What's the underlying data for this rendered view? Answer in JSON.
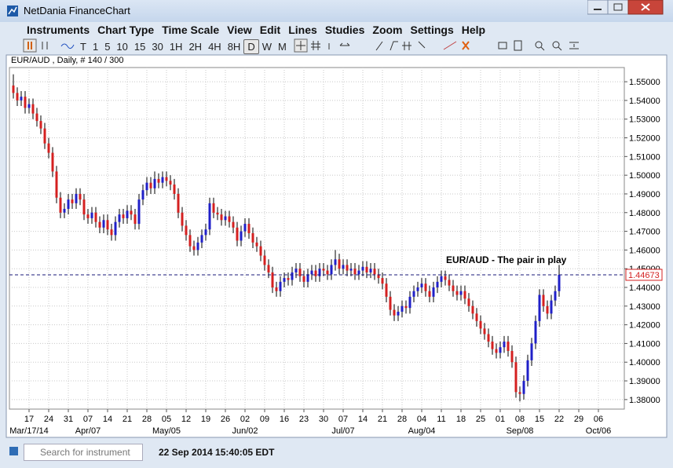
{
  "window": {
    "title": "NetDania FinanceChart"
  },
  "menu": [
    "Instruments",
    "Chart Type",
    "Time Scale",
    "View",
    "Edit",
    "Lines",
    "Studies",
    "Zoom",
    "Settings",
    "Help"
  ],
  "toolbar": {
    "periods": [
      "T",
      "1",
      "5",
      "10",
      "15",
      "30",
      "1H",
      "2H",
      "4H",
      "8H",
      "D",
      "W",
      "M"
    ],
    "selected_period": "D"
  },
  "chart_data": {
    "type": "candlestick",
    "header": "EUR/AUD , Daily, # 140 / 300",
    "annotation": "EUR/AUD - The pair in play",
    "up_color": "#2020c8",
    "down_color": "#d42020",
    "grid": true,
    "x": [
      "2014-03-11",
      "2014-03-12",
      "2014-03-13",
      "2014-03-14",
      "2014-03-17",
      "2014-03-18",
      "2014-03-19",
      "2014-03-20",
      "2014-03-21",
      "2014-03-24",
      "2014-03-25",
      "2014-03-26",
      "2014-03-27",
      "2014-03-28",
      "2014-03-31",
      "2014-04-01",
      "2014-04-02",
      "2014-04-03",
      "2014-04-04",
      "2014-04-07",
      "2014-04-08",
      "2014-04-09",
      "2014-04-10",
      "2014-04-11",
      "2014-04-14",
      "2014-04-15",
      "2014-04-16",
      "2014-04-17",
      "2014-04-18",
      "2014-04-21",
      "2014-04-22",
      "2014-04-23",
      "2014-04-24",
      "2014-04-25",
      "2014-04-28",
      "2014-04-29",
      "2014-04-30",
      "2014-05-01",
      "2014-05-02",
      "2014-05-05",
      "2014-05-06",
      "2014-05-07",
      "2014-05-08",
      "2014-05-09",
      "2014-05-12",
      "2014-05-13",
      "2014-05-14",
      "2014-05-15",
      "2014-05-16",
      "2014-05-19",
      "2014-05-20",
      "2014-05-21",
      "2014-05-22",
      "2014-05-23",
      "2014-05-26",
      "2014-05-27",
      "2014-05-28",
      "2014-05-29",
      "2014-05-30",
      "2014-06-02",
      "2014-06-03",
      "2014-06-04",
      "2014-06-05",
      "2014-06-06",
      "2014-06-09",
      "2014-06-10",
      "2014-06-11",
      "2014-06-12",
      "2014-06-13",
      "2014-06-16",
      "2014-06-17",
      "2014-06-18",
      "2014-06-19",
      "2014-06-20",
      "2014-06-23",
      "2014-06-24",
      "2014-06-25",
      "2014-06-26",
      "2014-06-27",
      "2014-06-30",
      "2014-07-01",
      "2014-07-02",
      "2014-07-03",
      "2014-07-04",
      "2014-07-07",
      "2014-07-08",
      "2014-07-09",
      "2014-07-10",
      "2014-07-11",
      "2014-07-14",
      "2014-07-15",
      "2014-07-16",
      "2014-07-17",
      "2014-07-18",
      "2014-07-21",
      "2014-07-22",
      "2014-07-23",
      "2014-07-24",
      "2014-07-25",
      "2014-07-28",
      "2014-07-29",
      "2014-07-30",
      "2014-07-31",
      "2014-08-01",
      "2014-08-04",
      "2014-08-05",
      "2014-08-06",
      "2014-08-07",
      "2014-08-08",
      "2014-08-11",
      "2014-08-12",
      "2014-08-13",
      "2014-08-14",
      "2014-08-15",
      "2014-08-18",
      "2014-08-19",
      "2014-08-20",
      "2014-08-21",
      "2014-08-22",
      "2014-08-25",
      "2014-08-26",
      "2014-08-27",
      "2014-08-28",
      "2014-08-29",
      "2014-09-01",
      "2014-09-02",
      "2014-09-03",
      "2014-09-04",
      "2014-09-05",
      "2014-09-08",
      "2014-09-09",
      "2014-09-10",
      "2014-09-11",
      "2014-09-12",
      "2014-09-15",
      "2014-09-16",
      "2014-09-17",
      "2014-09-18",
      "2014-09-19",
      "2014-09-22"
    ],
    "open": [
      1.548,
      1.544,
      1.54,
      1.542,
      1.536,
      1.538,
      1.533,
      1.529,
      1.525,
      1.517,
      1.512,
      1.502,
      1.488,
      1.48,
      1.482,
      1.487,
      1.485,
      1.49,
      1.487,
      1.479,
      1.477,
      1.48,
      1.475,
      1.472,
      1.476,
      1.471,
      1.468,
      1.475,
      1.479,
      1.477,
      1.481,
      1.479,
      1.474,
      1.487,
      1.492,
      1.496,
      1.493,
      1.498,
      1.496,
      1.499,
      1.497,
      1.495,
      1.49,
      1.48,
      1.473,
      1.468,
      1.462,
      1.46,
      1.464,
      1.468,
      1.471,
      1.485,
      1.48,
      1.479,
      1.476,
      1.478,
      1.475,
      1.472,
      1.465,
      1.47,
      1.474,
      1.469,
      1.464,
      1.462,
      1.457,
      1.452,
      1.448,
      1.44,
      1.438,
      1.443,
      1.445,
      1.444,
      1.448,
      1.45,
      1.446,
      1.443,
      1.447,
      1.449,
      1.446,
      1.45,
      1.449,
      1.447,
      1.452,
      1.455,
      1.45,
      1.452,
      1.449,
      1.45,
      1.447,
      1.449,
      1.451,
      1.448,
      1.45,
      1.447,
      1.445,
      1.442,
      1.435,
      1.428,
      1.425,
      1.427,
      1.43,
      1.429,
      1.435,
      1.438,
      1.44,
      1.442,
      1.438,
      1.435,
      1.44,
      1.443,
      1.446,
      1.444,
      1.441,
      1.438,
      1.436,
      1.438,
      1.434,
      1.43,
      1.426,
      1.422,
      1.418,
      1.415,
      1.411,
      1.407,
      1.405,
      1.408,
      1.411,
      1.406,
      1.4,
      1.384,
      1.383,
      1.39,
      1.401,
      1.41,
      1.422,
      1.436,
      1.43,
      1.426,
      1.433,
      1.438
    ],
    "high": [
      1.554,
      1.547,
      1.545,
      1.545,
      1.541,
      1.541,
      1.536,
      1.532,
      1.528,
      1.52,
      1.515,
      1.505,
      1.491,
      1.485,
      1.49,
      1.49,
      1.493,
      1.493,
      1.49,
      1.482,
      1.483,
      1.483,
      1.478,
      1.479,
      1.479,
      1.474,
      1.478,
      1.482,
      1.482,
      1.484,
      1.484,
      1.482,
      1.49,
      1.495,
      1.499,
      1.499,
      1.502,
      1.501,
      1.502,
      1.502,
      1.5,
      1.498,
      1.493,
      1.483,
      1.476,
      1.471,
      1.465,
      1.467,
      1.471,
      1.474,
      1.488,
      1.488,
      1.483,
      1.482,
      1.481,
      1.481,
      1.478,
      1.475,
      1.473,
      1.477,
      1.477,
      1.472,
      1.467,
      1.465,
      1.46,
      1.455,
      1.451,
      1.443,
      1.446,
      1.448,
      1.448,
      1.451,
      1.453,
      1.453,
      1.449,
      1.45,
      1.452,
      1.452,
      1.453,
      1.453,
      1.452,
      1.455,
      1.46,
      1.458,
      1.455,
      1.455,
      1.453,
      1.453,
      1.452,
      1.454,
      1.454,
      1.453,
      1.453,
      1.45,
      1.448,
      1.445,
      1.438,
      1.431,
      1.43,
      1.433,
      1.433,
      1.438,
      1.441,
      1.443,
      1.445,
      1.445,
      1.441,
      1.443,
      1.446,
      1.449,
      1.449,
      1.447,
      1.444,
      1.441,
      1.441,
      1.441,
      1.437,
      1.433,
      1.429,
      1.425,
      1.421,
      1.418,
      1.414,
      1.41,
      1.411,
      1.414,
      1.414,
      1.409,
      1.403,
      1.387,
      1.393,
      1.404,
      1.413,
      1.425,
      1.439,
      1.439,
      1.433,
      1.436,
      1.441,
      1.452
    ],
    "low": [
      1.541,
      1.537,
      1.537,
      1.533,
      1.533,
      1.53,
      1.526,
      1.522,
      1.514,
      1.509,
      1.499,
      1.485,
      1.477,
      1.477,
      1.479,
      1.482,
      1.482,
      1.484,
      1.476,
      1.474,
      1.474,
      1.472,
      1.469,
      1.469,
      1.468,
      1.465,
      1.465,
      1.472,
      1.474,
      1.474,
      1.476,
      1.471,
      1.471,
      1.484,
      1.489,
      1.49,
      1.49,
      1.493,
      1.493,
      1.494,
      1.492,
      1.487,
      1.477,
      1.47,
      1.465,
      1.459,
      1.457,
      1.457,
      1.461,
      1.465,
      1.468,
      1.477,
      1.476,
      1.473,
      1.473,
      1.472,
      1.469,
      1.462,
      1.462,
      1.467,
      1.466,
      1.461,
      1.459,
      1.454,
      1.449,
      1.445,
      1.437,
      1.435,
      1.435,
      1.44,
      1.441,
      1.441,
      1.445,
      1.443,
      1.44,
      1.44,
      1.444,
      1.443,
      1.443,
      1.446,
      1.444,
      1.444,
      1.449,
      1.447,
      1.447,
      1.446,
      1.446,
      1.444,
      1.444,
      1.446,
      1.445,
      1.445,
      1.444,
      1.442,
      1.439,
      1.432,
      1.425,
      1.422,
      1.422,
      1.424,
      1.426,
      1.426,
      1.432,
      1.435,
      1.437,
      1.435,
      1.432,
      1.432,
      1.437,
      1.44,
      1.441,
      1.438,
      1.435,
      1.433,
      1.433,
      1.431,
      1.427,
      1.423,
      1.419,
      1.415,
      1.412,
      1.408,
      1.404,
      1.402,
      1.402,
      1.405,
      1.403,
      1.397,
      1.381,
      1.379,
      1.38,
      1.387,
      1.398,
      1.407,
      1.419,
      1.427,
      1.423,
      1.423,
      1.43,
      1.435
    ],
    "close": [
      1.544,
      1.54,
      1.542,
      1.536,
      1.538,
      1.533,
      1.529,
      1.525,
      1.517,
      1.512,
      1.502,
      1.488,
      1.48,
      1.482,
      1.487,
      1.485,
      1.49,
      1.487,
      1.479,
      1.477,
      1.48,
      1.475,
      1.472,
      1.476,
      1.471,
      1.468,
      1.475,
      1.479,
      1.477,
      1.481,
      1.479,
      1.474,
      1.487,
      1.492,
      1.496,
      1.493,
      1.498,
      1.496,
      1.499,
      1.497,
      1.495,
      1.49,
      1.48,
      1.473,
      1.468,
      1.462,
      1.46,
      1.464,
      1.468,
      1.471,
      1.485,
      1.48,
      1.479,
      1.476,
      1.478,
      1.475,
      1.472,
      1.465,
      1.47,
      1.474,
      1.469,
      1.464,
      1.462,
      1.457,
      1.452,
      1.448,
      1.44,
      1.438,
      1.443,
      1.445,
      1.444,
      1.448,
      1.45,
      1.446,
      1.443,
      1.447,
      1.449,
      1.446,
      1.45,
      1.449,
      1.447,
      1.452,
      1.455,
      1.45,
      1.452,
      1.449,
      1.45,
      1.447,
      1.449,
      1.451,
      1.448,
      1.45,
      1.447,
      1.445,
      1.442,
      1.435,
      1.428,
      1.425,
      1.427,
      1.43,
      1.429,
      1.435,
      1.438,
      1.44,
      1.442,
      1.438,
      1.435,
      1.44,
      1.443,
      1.446,
      1.444,
      1.441,
      1.438,
      1.436,
      1.438,
      1.434,
      1.43,
      1.426,
      1.422,
      1.418,
      1.415,
      1.411,
      1.407,
      1.405,
      1.408,
      1.411,
      1.406,
      1.4,
      1.384,
      1.383,
      1.39,
      1.401,
      1.41,
      1.422,
      1.436,
      1.43,
      1.426,
      1.433,
      1.438,
      1.44673
    ],
    "ylim": [
      1.3749,
      1.5576
    ],
    "yticks": [
      {
        "value": 1.55,
        "label": "1.55000"
      },
      {
        "value": 1.54,
        "label": "1.54000"
      },
      {
        "value": 1.53,
        "label": "1.53000"
      },
      {
        "value": 1.52,
        "label": "1.52000"
      },
      {
        "value": 1.51,
        "label": "1.51000"
      },
      {
        "value": 1.5,
        "label": "1.50000"
      },
      {
        "value": 1.49,
        "label": "1.49000"
      },
      {
        "value": 1.48,
        "label": "1.48000"
      },
      {
        "value": 1.47,
        "label": "1.47000"
      },
      {
        "value": 1.46,
        "label": "1.46000"
      },
      {
        "value": 1.45,
        "label": "1.45000"
      },
      {
        "value": 1.44,
        "label": "1.44000"
      },
      {
        "value": 1.43,
        "label": "1.43000"
      },
      {
        "value": 1.42,
        "label": "1.42000"
      },
      {
        "value": 1.41,
        "label": "1.41000"
      },
      {
        "value": 1.4,
        "label": "1.40000"
      },
      {
        "value": 1.39,
        "label": "1.39000"
      },
      {
        "value": 1.38,
        "label": "1.38000"
      }
    ],
    "xticks": [
      {
        "value": "2014-03-17",
        "label": "17"
      },
      {
        "value": "2014-03-24",
        "label": "24"
      },
      {
        "value": "2014-03-31",
        "label": "31"
      },
      {
        "value": "2014-04-07",
        "label": "07"
      },
      {
        "value": "2014-04-14",
        "label": "14"
      },
      {
        "value": "2014-04-21",
        "label": "21"
      },
      {
        "value": "2014-04-28",
        "label": "28"
      },
      {
        "value": "2014-05-05",
        "label": "05"
      },
      {
        "value": "2014-05-12",
        "label": "12"
      },
      {
        "value": "2014-05-19",
        "label": "19"
      },
      {
        "value": "2014-05-26",
        "label": "26"
      },
      {
        "value": "2014-06-02",
        "label": "02"
      },
      {
        "value": "2014-06-09",
        "label": "09"
      },
      {
        "value": "2014-06-16",
        "label": "16"
      },
      {
        "value": "2014-06-23",
        "label": "23"
      },
      {
        "value": "2014-06-30",
        "label": "30"
      },
      {
        "value": "2014-07-07",
        "label": "07"
      },
      {
        "value": "2014-07-14",
        "label": "14"
      },
      {
        "value": "2014-07-21",
        "label": "21"
      },
      {
        "value": "2014-07-28",
        "label": "28"
      },
      {
        "value": "2014-08-04",
        "label": "04"
      },
      {
        "value": "2014-08-11",
        "label": "11"
      },
      {
        "value": "2014-08-18",
        "label": "18"
      },
      {
        "value": "2014-08-25",
        "label": "25"
      },
      {
        "value": "2014-09-01",
        "label": "01"
      },
      {
        "value": "2014-09-08",
        "label": "08"
      },
      {
        "value": "2014-09-15",
        "label": "15"
      },
      {
        "value": "2014-09-22",
        "label": "22"
      },
      {
        "value": "2014-09-29",
        "label": "29"
      },
      {
        "value": "2014-10-06",
        "label": "06"
      }
    ],
    "month_ticks": [
      {
        "value": "2014-03-17",
        "label": "Mar/17/14"
      },
      {
        "value": "2014-04-07",
        "label": "Apr/07"
      },
      {
        "value": "2014-05-05",
        "label": "May/05"
      },
      {
        "value": "2014-06-02",
        "label": "Jun/02"
      },
      {
        "value": "2014-07-07",
        "label": "Jul/07"
      },
      {
        "value": "2014-08-04",
        "label": "Aug/04"
      },
      {
        "value": "2014-09-08",
        "label": "Sep/08"
      },
      {
        "value": "2014-10-06",
        "label": "Oct/06"
      }
    ]
  },
  "status": {
    "search_placeholder": "Search for instrument",
    "timestamp": "22 Sep 2014 15:40:05 EDT"
  }
}
